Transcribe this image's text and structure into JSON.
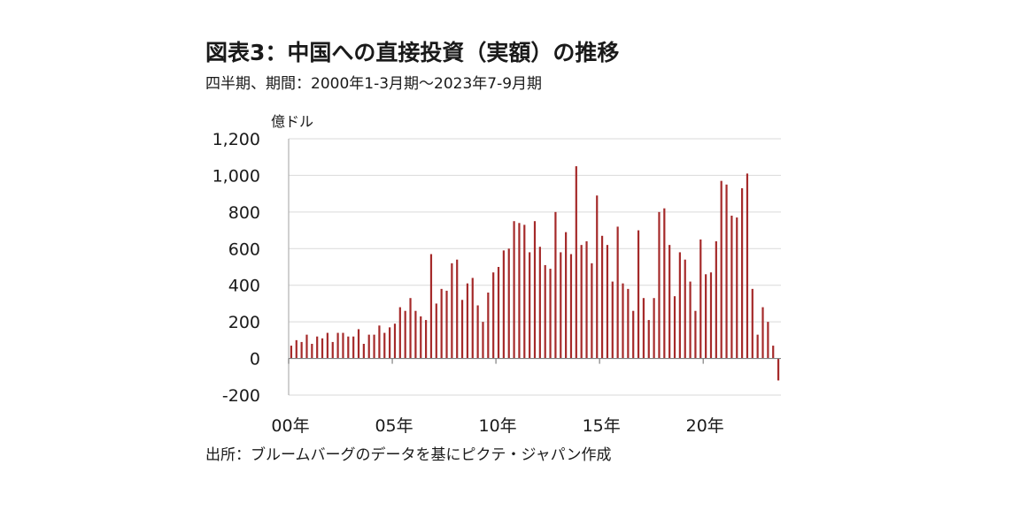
{
  "chart_data": {
    "type": "bar",
    "title": "図表3：中国への直接投資（実額）の推移",
    "subtitle": "四半期、期間：2000年1-3月期～2023年7-9月期",
    "source": "出所：ブルームバーグのデータを基にピクテ・ジャパン作成",
    "y_unit": "億ドル",
    "ylim": [
      -200,
      1200
    ],
    "yticks": [
      -200,
      0,
      200,
      400,
      600,
      800,
      1000,
      1200
    ],
    "ytick_labels": [
      "-200",
      "0",
      "200",
      "400",
      "600",
      "800",
      "1,000",
      "1,200"
    ],
    "xtick_labels": [
      "00年",
      "05年",
      "10年",
      "15年",
      "20年"
    ],
    "xtick_years": [
      2000,
      2005,
      2010,
      2015,
      2020
    ],
    "start_year": 2000,
    "grid": true,
    "bar_color": "#a52a2a",
    "series": [
      {
        "values": [
          70,
          100,
          90,
          130,
          80,
          120,
          110,
          140,
          90,
          140,
          140,
          120,
          120,
          160,
          80,
          130,
          130,
          180,
          140,
          170,
          190,
          280,
          260,
          330,
          260,
          230,
          210,
          570,
          300,
          380,
          370,
          520,
          540,
          320,
          410,
          440,
          290,
          200,
          360,
          470,
          500,
          590,
          600,
          750,
          740,
          730,
          580,
          750,
          610,
          510,
          490,
          800,
          580,
          690,
          570,
          1050,
          620,
          640,
          520,
          890,
          670,
          620,
          420,
          720,
          410,
          380,
          260,
          700,
          330,
          210,
          330,
          800,
          820,
          620,
          340,
          580,
          540,
          420,
          260,
          650,
          460,
          470,
          640,
          970,
          950,
          780,
          770,
          930,
          1010,
          380,
          130,
          280,
          200,
          70,
          -120
        ]
      }
    ]
  }
}
